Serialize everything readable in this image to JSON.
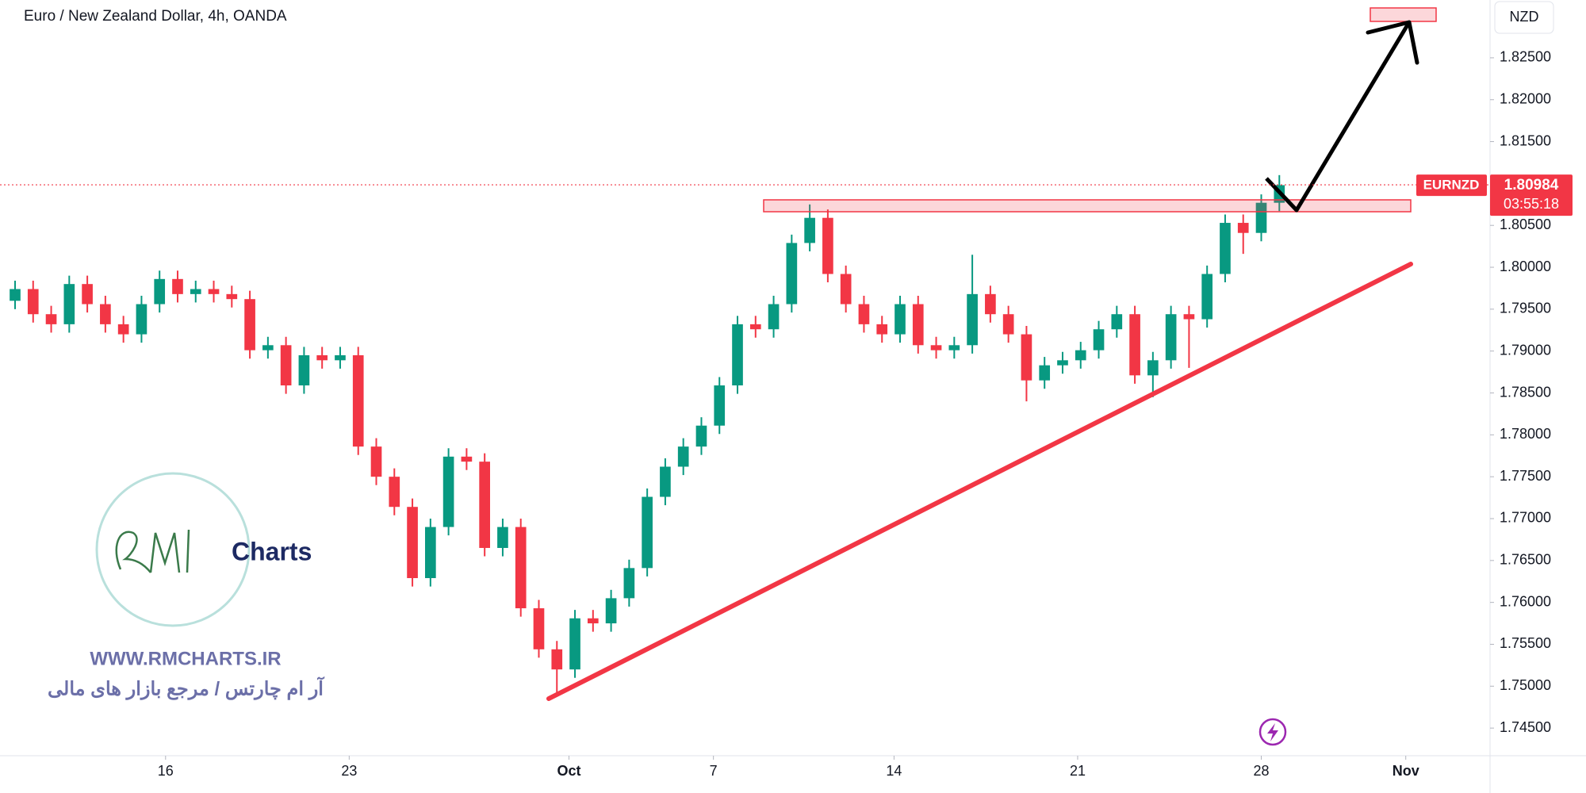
{
  "chart_data": {
    "type": "candlestick",
    "title": "Euro / New Zealand Dollar, 4h, OANDA",
    "currency": "NZD",
    "up_color": "#089981",
    "down_color": "#f23645",
    "x": [
      0,
      3,
      6,
      9,
      12,
      15,
      18,
      21,
      24,
      27,
      30,
      33,
      36,
      39,
      42,
      45,
      48,
      51,
      54,
      57,
      60,
      63,
      66,
      69,
      72,
      75,
      78,
      81,
      84,
      87,
      90,
      93,
      96,
      99,
      102,
      105,
      108,
      111,
      114,
      117,
      120,
      123,
      126,
      129,
      132,
      135,
      138,
      141,
      144,
      147,
      150,
      153,
      156,
      159,
      162,
      165,
      168,
      171,
      174,
      177,
      180,
      183,
      186,
      189,
      192,
      195,
      198,
      201,
      204,
      207,
      210
    ],
    "open": [
      1.796,
      1.7974,
      1.7944,
      1.7932,
      1.798,
      1.7956,
      1.7932,
      1.792,
      1.7956,
      1.7986,
      1.7968,
      1.7974,
      1.7968,
      1.7962,
      1.7901,
      1.7907,
      1.7859,
      1.7895,
      1.7889,
      1.7895,
      1.7786,
      1.775,
      1.7714,
      1.7629,
      1.769,
      1.7774,
      1.7768,
      1.7665,
      1.769,
      1.7593,
      1.7544,
      1.752,
      1.7581,
      1.7575,
      1.7605,
      1.7641,
      1.7726,
      1.7762,
      1.7786,
      1.7811,
      1.7859,
      1.7932,
      1.7926,
      1.7956,
      1.8029,
      1.8059,
      1.7992,
      1.7956,
      1.7932,
      1.792,
      1.7956,
      1.7907,
      1.7901,
      1.7907,
      1.7968,
      1.7944,
      1.792,
      1.7865,
      1.7883,
      1.7889,
      1.7901,
      1.7926,
      1.7944,
      1.7871,
      1.7889,
      1.7944,
      1.7938,
      1.7992,
      1.8053,
      1.8041,
      1.8077
    ],
    "high": [
      1.7984,
      1.7984,
      1.7954,
      1.799,
      1.799,
      1.7966,
      1.7942,
      1.7966,
      1.7996,
      1.7996,
      1.7984,
      1.7984,
      1.7978,
      1.7972,
      1.7917,
      1.7917,
      1.7905,
      1.7905,
      1.7905,
      1.7905,
      1.7796,
      1.776,
      1.7724,
      1.77,
      1.7784,
      1.7784,
      1.7778,
      1.77,
      1.77,
      1.7603,
      1.7554,
      1.7591,
      1.7591,
      1.7615,
      1.7651,
      1.7736,
      1.7772,
      1.7796,
      1.7821,
      1.7869,
      1.7942,
      1.7942,
      1.7966,
      1.8039,
      1.8075,
      1.8069,
      1.8002,
      1.7966,
      1.7942,
      1.7966,
      1.7966,
      1.7917,
      1.7917,
      1.8015,
      1.7978,
      1.7954,
      1.793,
      1.7893,
      1.7899,
      1.7911,
      1.7936,
      1.7954,
      1.7954,
      1.7899,
      1.7954,
      1.7954,
      1.8002,
      1.8063,
      1.8063,
      1.8087,
      1.811
    ],
    "low": [
      1.795,
      1.7934,
      1.7922,
      1.7922,
      1.7946,
      1.7922,
      1.791,
      1.791,
      1.7946,
      1.7958,
      1.7958,
      1.7958,
      1.7952,
      1.7891,
      1.7891,
      1.7849,
      1.7849,
      1.7879,
      1.7879,
      1.7776,
      1.774,
      1.7704,
      1.7619,
      1.7619,
      1.768,
      1.7758,
      1.7655,
      1.7655,
      1.7583,
      1.7534,
      1.749,
      1.751,
      1.7565,
      1.7565,
      1.7595,
      1.7631,
      1.7716,
      1.7752,
      1.7776,
      1.7801,
      1.7849,
      1.7916,
      1.7916,
      1.7946,
      1.8019,
      1.7982,
      1.7946,
      1.7922,
      1.791,
      1.791,
      1.7897,
      1.7891,
      1.7891,
      1.7897,
      1.7934,
      1.791,
      1.784,
      1.7855,
      1.7873,
      1.7879,
      1.7891,
      1.7916,
      1.7861,
      1.7845,
      1.7879,
      1.788,
      1.7928,
      1.7982,
      1.8016,
      1.8031,
      1.8067
    ],
    "close": [
      1.7974,
      1.7944,
      1.7932,
      1.798,
      1.7956,
      1.7932,
      1.792,
      1.7956,
      1.7986,
      1.7968,
      1.7974,
      1.7968,
      1.7962,
      1.7901,
      1.7907,
      1.7859,
      1.7895,
      1.7889,
      1.7895,
      1.7786,
      1.775,
      1.7714,
      1.7629,
      1.769,
      1.7774,
      1.7768,
      1.7665,
      1.769,
      1.7593,
      1.7544,
      1.752,
      1.7581,
      1.7575,
      1.7605,
      1.7641,
      1.7726,
      1.7762,
      1.7786,
      1.7811,
      1.7859,
      1.7932,
      1.7926,
      1.7956,
      1.8029,
      1.8059,
      1.7992,
      1.7956,
      1.7932,
      1.792,
      1.7956,
      1.7907,
      1.7901,
      1.7907,
      1.7968,
      1.7944,
      1.792,
      1.7865,
      1.7883,
      1.7889,
      1.7901,
      1.7926,
      1.7944,
      1.7871,
      1.7889,
      1.7944,
      1.7938,
      1.7992,
      1.8053,
      1.8041,
      1.8077,
      1.8098
    ],
    "xlim": [
      0,
      245
    ],
    "xticks": [
      {
        "value": 25,
        "label": "16"
      },
      {
        "value": 55.5,
        "label": "23"
      },
      {
        "value": 92,
        "label": "Oct"
      },
      {
        "value": 116,
        "label": "7"
      },
      {
        "value": 146,
        "label": "14"
      },
      {
        "value": 176.5,
        "label": "21"
      },
      {
        "value": 207,
        "label": "28"
      },
      {
        "value": 231,
        "label": "Nov"
      }
    ],
    "ylim": [
      1.7417,
      1.8319
    ],
    "yticks": [
      {
        "value": 1.745,
        "label": "1.74500"
      },
      {
        "value": 1.75,
        "label": "1.75000"
      },
      {
        "value": 1.755,
        "label": "1.75500"
      },
      {
        "value": 1.76,
        "label": "1.76000"
      },
      {
        "value": 1.765,
        "label": "1.76500"
      },
      {
        "value": 1.77,
        "label": "1.77000"
      },
      {
        "value": 1.775,
        "label": "1.77500"
      },
      {
        "value": 1.78,
        "label": "1.78000"
      },
      {
        "value": 1.785,
        "label": "1.78500"
      },
      {
        "value": 1.79,
        "label": "1.79000"
      },
      {
        "value": 1.795,
        "label": "1.79500"
      },
      {
        "value": 1.8,
        "label": "1.80000"
      },
      {
        "value": 1.805,
        "label": "1.80500"
      },
      {
        "value": 1.81,
        "label": "1.81000"
      },
      {
        "value": 1.815,
        "label": "1.81500"
      },
      {
        "value": 1.82,
        "label": "1.82000"
      },
      {
        "value": 1.825,
        "label": "1.82500"
      }
    ],
    "last_price": {
      "symbol": "EURNZD",
      "price": 1.80984,
      "countdown": "03:55:18"
    }
  },
  "watermark": {
    "logo": "Charts",
    "website": "WWW.RMCHARTS.IR",
    "tagline": "آر ام چارتس / مرجع بازار های مالی"
  }
}
